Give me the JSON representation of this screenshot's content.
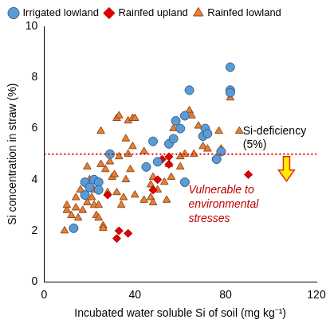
{
  "chart_data": {
    "type": "scatter",
    "x_label": "Incubated water soluble Si of soil (mg kg⁻¹)",
    "y_label": "Si concentration in straw (%)",
    "xlim": [
      0,
      120
    ],
    "xticks": [
      0,
      40,
      80,
      120
    ],
    "ylim": [
      0,
      10
    ],
    "yticks": [
      0,
      2,
      4,
      6,
      8,
      10
    ],
    "grid": false,
    "legend": "top",
    "series": [
      {
        "name": "Irrigated lowland",
        "color": "#5b9bd5",
        "marker": "circle",
        "x": [
          13,
          18,
          18,
          20,
          22,
          24,
          24,
          29,
          45,
          48,
          50,
          55,
          57,
          58,
          60,
          62,
          62,
          64,
          70,
          71,
          72,
          76,
          78,
          82,
          82,
          82
        ],
        "values": [
          2.1,
          3.4,
          3.9,
          3.7,
          4.0,
          3.9,
          3.6,
          5.0,
          4.5,
          5.5,
          4.7,
          5.4,
          5.6,
          6.3,
          6.0,
          6.5,
          3.9,
          7.5,
          5.7,
          6.0,
          5.8,
          4.8,
          5.1,
          8.4,
          7.5,
          7.4
        ]
      },
      {
        "name": "Rainfed upland",
        "color": "#e00000",
        "marker": "diamond",
        "x": [
          28,
          32,
          33,
          37,
          48,
          50,
          52,
          55,
          55,
          90
        ],
        "values": [
          3.4,
          1.7,
          2.0,
          1.9,
          3.6,
          4.0,
          4.8,
          4.9,
          4.6,
          4.2
        ]
      },
      {
        "name": "Rainfed lowland",
        "color": "#ed7d31",
        "marker": "triangle",
        "x": [
          9,
          10,
          10,
          12,
          14,
          14,
          15,
          16,
          17,
          19,
          19,
          20,
          21,
          22,
          22,
          23,
          24,
          24,
          25,
          25,
          26,
          26,
          27,
          28,
          29,
          30,
          31,
          32,
          32,
          33,
          33,
          34,
          35,
          36,
          36,
          37,
          37,
          38,
          39,
          39,
          40,
          40,
          44,
          44,
          47,
          47,
          48,
          48,
          50,
          53,
          54,
          55,
          56,
          57,
          60,
          60,
          62,
          64,
          65,
          66,
          68,
          70,
          72,
          77,
          78,
          82,
          86
        ],
        "values": [
          2.0,
          2.8,
          3.0,
          2.6,
          3.3,
          2.9,
          2.5,
          3.6,
          2.8,
          4.5,
          3.1,
          4.0,
          3.3,
          3.6,
          3.0,
          2.6,
          3.0,
          2.5,
          5.9,
          4.6,
          2.2,
          2.1,
          4.4,
          3.5,
          4.7,
          4.1,
          4.2,
          3.5,
          6.4,
          6.5,
          4.9,
          3.0,
          3.3,
          5.6,
          4.0,
          6.3,
          5.0,
          4.4,
          5.3,
          6.4,
          6.4,
          3.4,
          3.2,
          5.1,
          3.8,
          3.3,
          3.1,
          4.1,
          3.6,
          3.9,
          3.2,
          4.6,
          4.1,
          6.0,
          4.5,
          4.9,
          5.0,
          6.7,
          6.5,
          5.0,
          6.1,
          5.3,
          5.2,
          5.9,
          5.2,
          7.2,
          5.9
        ]
      }
    ],
    "reference_line": {
      "y": 5,
      "color": "#e00000",
      "line_style": "dotted",
      "label": [
        "Si-deficiency",
        "(5%)"
      ]
    },
    "annotation": {
      "text": [
        "Vulnerable to",
        "environmental",
        "stresses"
      ],
      "color": "#c00000"
    }
  }
}
